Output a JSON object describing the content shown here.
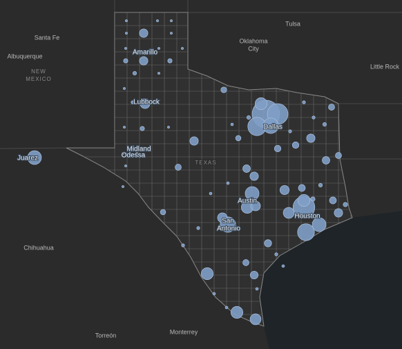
{
  "map": {
    "labels": [
      "Santa Fe",
      "Albuquerque",
      "Tulsa",
      "Oklahoma",
      "City",
      "Little Rock",
      "Amarillo",
      "Lubbock",
      "Midland",
      "Odessa",
      "Juarez",
      "Dallas",
      "TEXAS",
      "Austin",
      "San",
      "Antonio",
      "Houston",
      "Chihuahua",
      "Torreón",
      "Monterrey"
    ],
    "regions": [
      "NEW",
      "MEXICO"
    ],
    "symbols": {
      "color": "#7f9ec7",
      "values": [
        1600,
        900,
        700,
        500,
        300,
        1000,
        600,
        400,
        300,
        250,
        400,
        300,
        200,
        500,
        200,
        300,
        250,
        300,
        400,
        150,
        150,
        200,
        150,
        150,
        80,
        120,
        80,
        180,
        100,
        100,
        150,
        130,
        80,
        110,
        80,
        60,
        70,
        120,
        150,
        90,
        90,
        60,
        10,
        10,
        10,
        10,
        10,
        10,
        10,
        10,
        40,
        40,
        30,
        10,
        10,
        20,
        10,
        40,
        10,
        10,
        10,
        10,
        10,
        20,
        20,
        15,
        15,
        15,
        15,
        30,
        20,
        20,
        20,
        30,
        15,
        30,
        40,
        40,
        15,
        20,
        15
      ]
    }
  }
}
